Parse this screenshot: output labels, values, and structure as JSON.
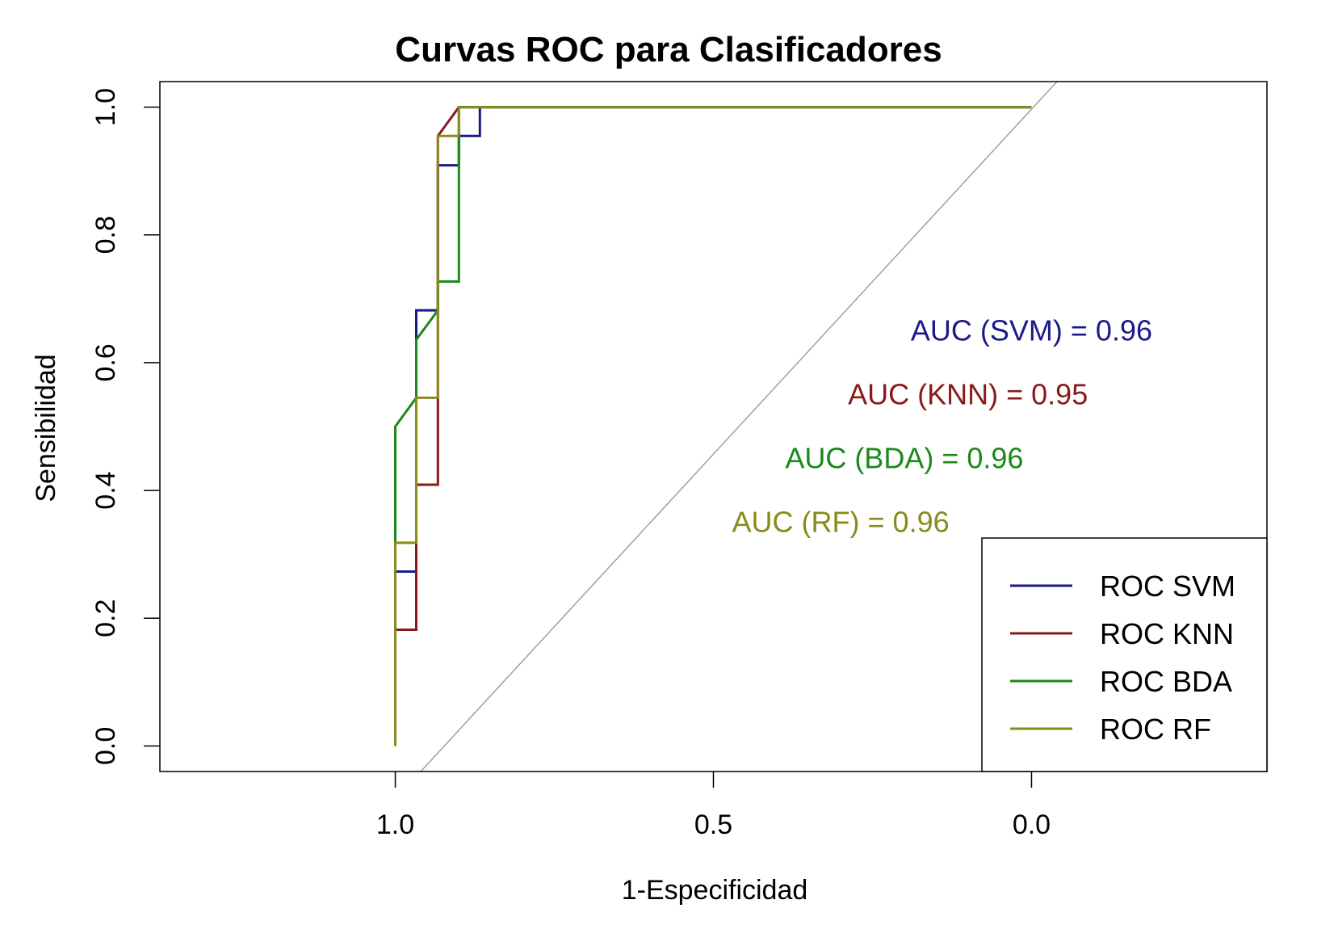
{
  "chart_data": {
    "type": "line",
    "title": "Curvas ROC para Clasificadores",
    "xlabel": "1-Especificidad",
    "ylabel": "Sensibilidad",
    "x_axis_reversed": true,
    "xlim": [
      1.37,
      -0.37
    ],
    "ylim": [
      -0.04,
      1.04
    ],
    "x_ticks": [
      1.0,
      0.5,
      0.0
    ],
    "x_tick_labels": [
      "1.0",
      "0.5",
      "0.0"
    ],
    "y_ticks": [
      0.0,
      0.2,
      0.4,
      0.6,
      0.8,
      1.0
    ],
    "y_tick_labels": [
      "0.0",
      "0.2",
      "0.4",
      "0.6",
      "0.8",
      "1.0"
    ],
    "grid": false,
    "diagonal_reference": {
      "color": "#a0a0a0"
    },
    "legend_position": "bottom-right",
    "series": [
      {
        "name": "ROC SVM",
        "color": "#1a1a8a",
        "points": [
          [
            1.0,
            0.0
          ],
          [
            1.0,
            0.273
          ],
          [
            0.967,
            0.273
          ],
          [
            0.967,
            0.636
          ],
          [
            0.967,
            0.682
          ],
          [
            0.933,
            0.682
          ],
          [
            0.933,
            0.909
          ],
          [
            0.9,
            0.909
          ],
          [
            0.9,
            0.955
          ],
          [
            0.867,
            0.955
          ],
          [
            0.867,
            1.0
          ],
          [
            0.0,
            1.0
          ]
        ]
      },
      {
        "name": "ROC KNN",
        "color": "#8a1a1a",
        "points": [
          [
            1.0,
            0.0
          ],
          [
            1.0,
            0.182
          ],
          [
            0.967,
            0.182
          ],
          [
            0.967,
            0.409
          ],
          [
            0.933,
            0.409
          ],
          [
            0.933,
            0.955
          ],
          [
            0.9,
            1.0
          ],
          [
            0.0,
            1.0
          ]
        ]
      },
      {
        "name": "ROC BDA",
        "color": "#1a8a1a",
        "points": [
          [
            1.0,
            0.0
          ],
          [
            1.0,
            0.5
          ],
          [
            0.967,
            0.545
          ],
          [
            0.967,
            0.636
          ],
          [
            0.933,
            0.682
          ],
          [
            0.933,
            0.727
          ],
          [
            0.9,
            0.727
          ],
          [
            0.9,
            1.0
          ],
          [
            0.0,
            1.0
          ]
        ]
      },
      {
        "name": "ROC RF",
        "color": "#8a8a1a",
        "points": [
          [
            1.0,
            0.0
          ],
          [
            1.0,
            0.318
          ],
          [
            0.967,
            0.318
          ],
          [
            0.967,
            0.545
          ],
          [
            0.933,
            0.545
          ],
          [
            0.933,
            0.955
          ],
          [
            0.9,
            0.955
          ],
          [
            0.9,
            1.0
          ],
          [
            0.0,
            1.0
          ]
        ]
      }
    ],
    "annotations": [
      {
        "text": "AUC (SVM) = 0.96",
        "color": "#1a1a8a",
        "x": 0.0,
        "y": 0.65
      },
      {
        "text": "AUC (KNN) = 0.95",
        "color": "#8a1a1a",
        "x": 0.1,
        "y": 0.55
      },
      {
        "text": "AUC (BDA) = 0.96",
        "color": "#1a8a1a",
        "x": 0.2,
        "y": 0.45
      },
      {
        "text": "AUC (RF) = 0.96",
        "color": "#8a8a1a",
        "x": 0.3,
        "y": 0.35
      }
    ]
  }
}
